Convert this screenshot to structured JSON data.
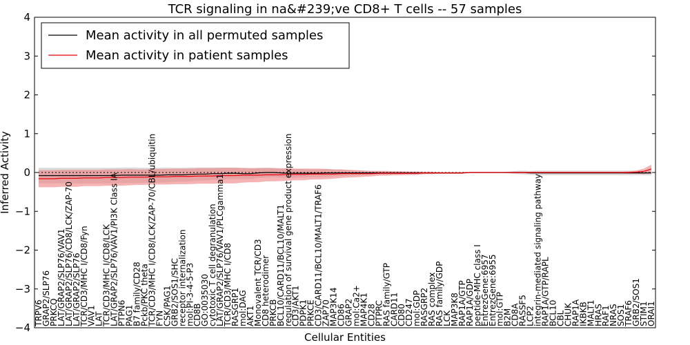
{
  "chart_data": {
    "type": "line",
    "title": "TCR signaling in na&#239;ve CD8+ T cells -- 57 samples",
    "xlabel": "Cellular Entities",
    "ylabel": "Inferred Activity",
    "ylim": [
      -4,
      4
    ],
    "yticks": [
      "4",
      "3",
      "2",
      "1",
      "0",
      "−1",
      "−2",
      "−3",
      "−4"
    ],
    "legend_position": "upper-left",
    "colors": {
      "permuted": "#000000",
      "permuted_band": "#bbbbbb",
      "patient": "#e8000b",
      "patient_band": "#f08080",
      "reference_line": "#000000"
    },
    "categories": [
      "TRPV6",
      "GRAP2/SLP76",
      "PRKCQ",
      "LAT/GRAP2/SLP76/VAV1",
      "LAT/GRAP2/SLP76/CD8/LCK/ZAP-70",
      "LAT/GRAP2/SLP76",
      "TCR/CD3/MHC I/CD8/Fyn",
      "VAV1",
      "LAT",
      "TCR/CD3/MHC I/CD8/LCK",
      "LAT/GRAP2/SLP76/VAV1/PI3K Class IA",
      "PTPN6",
      "PAG1",
      "B7 family/CD28",
      "Pckb/PKC theta",
      "TCR/CD3/MHC I/CD8/LCK/ZAP-70/CBL/ubiquitin",
      "FYN",
      "CSK/PAG1",
      "GRB2/SOS1/SHC",
      "receptor internalization",
      "mol:PI-3-4-5-P3",
      "CD8B",
      "GO:0035030",
      "cytotoxic T cell degranulation",
      "LAT/GRAP2/SLP76/VAV1/PLCgamma1",
      "TCR/CD3/MHC I/CD8",
      "RASGRP1",
      "mol:DAG",
      "AKT1",
      "Monovalent TCR/CD3",
      "CD8 heterodimer",
      "PRKCB",
      "BCL10/CARD11/BCL10/MALT1",
      "regulation of survival gene product expression",
      "CD3/AKT1",
      "PDPK1",
      "PRKCE",
      "CD3/CARD11/BCL10/MALT1/TRAF6",
      "ZAP70",
      "MAP3K14",
      "CD86",
      "GRAP2",
      "mol:Ca2+",
      "MAP4K1",
      "CD28",
      "PTPRC",
      "RAS family/GTP",
      "CARD11",
      "CD80",
      "CD247",
      "mol:GDP",
      "RASGRP2",
      "RAS complex",
      "RAS family/GDP",
      "LCK",
      "MAP3K8",
      "RAP1A/GTP",
      "RAP1A/GDP",
      "peptide-MHC class I",
      "EntrezGene:6957",
      "EntrezGene:6955",
      "mol:GTP",
      "B2M",
      "CD8A",
      "RASSF5",
      "LCP2",
      "integrin-mediated signaling pathway",
      "RAP1A/GTP/RAPL",
      "BCL10",
      "CBL",
      "CHUK",
      "RAP1A",
      "IKBKB",
      "MALT1",
      "HRAS",
      "RAF1",
      "NRAS",
      "SOS1",
      "TRAF6",
      "GRB2/SOS1",
      "STIM1",
      "ORAI1"
    ],
    "series": [
      {
        "name": "Mean activity in all permuted samples",
        "values": [
          -0.08,
          -0.08,
          -0.08,
          -0.08,
          -0.08,
          -0.08,
          -0.08,
          -0.08,
          -0.08,
          -0.08,
          -0.08,
          -0.07,
          -0.07,
          -0.07,
          -0.07,
          -0.07,
          -0.07,
          -0.06,
          -0.06,
          -0.06,
          -0.05,
          -0.04,
          -0.04,
          -0.03,
          -0.03,
          -0.02,
          -0.02,
          -0.03,
          -0.03,
          -0.01,
          0.0,
          0.0,
          -0.01,
          -0.02,
          -0.02,
          -0.02,
          -0.02,
          -0.02,
          -0.01,
          -0.01,
          -0.01,
          -0.01,
          -0.01,
          -0.01,
          -0.01,
          -0.01,
          -0.01,
          -0.01,
          -0.01,
          -0.01,
          -0.01,
          -0.01,
          -0.01,
          -0.01,
          -0.01,
          -0.01,
          -0.01,
          0.0,
          0.0,
          0.0,
          0.0,
          0.0,
          0.0,
          0.0,
          0.0,
          -0.01,
          -0.01,
          -0.01,
          -0.01,
          -0.01,
          -0.01,
          -0.01,
          -0.01,
          -0.01,
          -0.01,
          -0.01,
          -0.01,
          -0.01,
          -0.01,
          -0.01,
          -0.01,
          -0.01
        ],
        "band": [
          0.2,
          0.2,
          0.2,
          0.2,
          0.2,
          0.2,
          0.2,
          0.2,
          0.2,
          0.2,
          0.2,
          0.2,
          0.2,
          0.2,
          0.19,
          0.19,
          0.19,
          0.19,
          0.18,
          0.18,
          0.18,
          0.17,
          0.17,
          0.16,
          0.16,
          0.15,
          0.15,
          0.14,
          0.14,
          0.13,
          0.13,
          0.12,
          0.12,
          0.12,
          0.11,
          0.11,
          0.1,
          0.1,
          0.1,
          0.09,
          0.08,
          0.07,
          0.06,
          0.06,
          0.05,
          0.05,
          0.04,
          0.04,
          0.04,
          0.04,
          0.04,
          0.03,
          0.03,
          0.02,
          0.02,
          0.02,
          0.02,
          0.01,
          0.01,
          0.01,
          0.01,
          0.01,
          0.02,
          0.04,
          0.05,
          0.05,
          0.06,
          0.06,
          0.06,
          0.06,
          0.06,
          0.06,
          0.06,
          0.06,
          0.06,
          0.06,
          0.06,
          0.06,
          0.06,
          0.06,
          0.06,
          0.06
        ]
      },
      {
        "name": "Mean activity in patient samples",
        "values": [
          -0.16,
          -0.16,
          -0.16,
          -0.15,
          -0.15,
          -0.15,
          -0.14,
          -0.14,
          -0.14,
          -0.13,
          -0.13,
          -0.13,
          -0.12,
          -0.12,
          -0.12,
          -0.11,
          -0.11,
          -0.11,
          -0.1,
          -0.1,
          -0.1,
          -0.09,
          -0.09,
          -0.09,
          -0.08,
          -0.08,
          -0.08,
          -0.07,
          -0.07,
          -0.07,
          -0.06,
          -0.06,
          -0.06,
          -0.05,
          -0.05,
          -0.05,
          -0.04,
          -0.04,
          -0.04,
          -0.04,
          -0.03,
          -0.03,
          -0.03,
          -0.03,
          -0.03,
          -0.02,
          -0.02,
          -0.02,
          -0.02,
          -0.02,
          -0.02,
          -0.01,
          -0.01,
          -0.01,
          -0.01,
          -0.01,
          -0.01,
          0.0,
          0.0,
          0.0,
          0.0,
          0.0,
          0.0,
          0.0,
          0.0,
          0.0,
          0.0,
          0.0,
          0.0,
          0.0,
          0.0,
          0.0,
          0.0,
          0.0,
          0.0,
          0.0,
          0.0,
          0.0,
          0.0,
          0.01,
          0.03,
          0.09
        ],
        "band": [
          0.22,
          0.22,
          0.22,
          0.22,
          0.22,
          0.22,
          0.21,
          0.21,
          0.21,
          0.21,
          0.21,
          0.21,
          0.21,
          0.2,
          0.2,
          0.2,
          0.2,
          0.2,
          0.2,
          0.2,
          0.2,
          0.2,
          0.2,
          0.2,
          0.2,
          0.2,
          0.2,
          0.19,
          0.18,
          0.18,
          0.17,
          0.17,
          0.16,
          0.16,
          0.15,
          0.15,
          0.14,
          0.14,
          0.13,
          0.12,
          0.11,
          0.1,
          0.09,
          0.08,
          0.07,
          0.06,
          0.06,
          0.05,
          0.05,
          0.04,
          0.04,
          0.03,
          0.03,
          0.02,
          0.02,
          0.02,
          0.02,
          0.01,
          0.01,
          0.01,
          0.01,
          0.01,
          0.01,
          0.02,
          0.02,
          0.02,
          0.02,
          0.02,
          0.02,
          0.02,
          0.02,
          0.02,
          0.02,
          0.02,
          0.02,
          0.02,
          0.02,
          0.02,
          0.03,
          0.04,
          0.07,
          0.11
        ]
      }
    ]
  }
}
